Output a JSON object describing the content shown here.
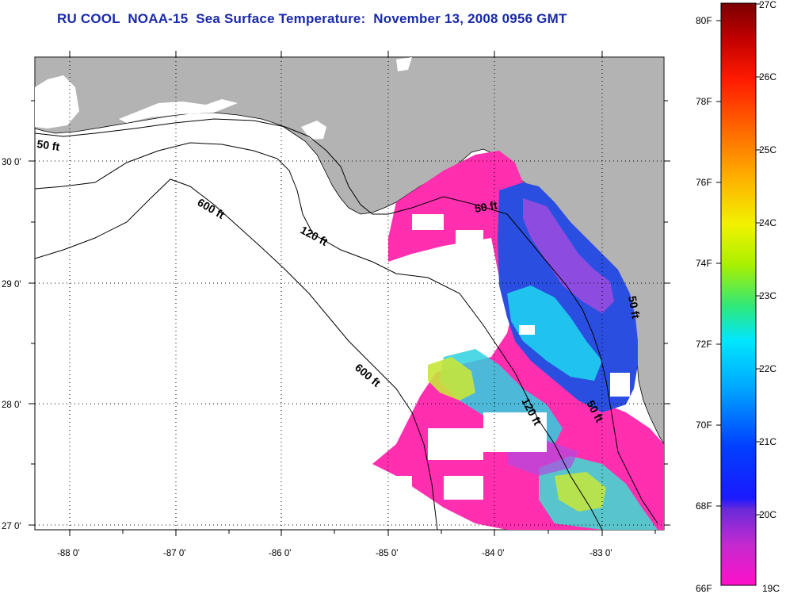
{
  "title": "RU COOL  NOAA-15  Sea Surface Temperature:  November 13, 2008 0956 GMT",
  "map": {
    "lon_ticks": [
      "-88 0'",
      "-87 0'",
      "-86 0'",
      "-85 0'",
      "-84 0'",
      "-83 0'"
    ],
    "lat_ticks": [
      "30 0'",
      "29 0'",
      "28 0'",
      "27 0'"
    ],
    "contours": [
      "50 ft",
      "120 ft",
      "600 ft",
      "600 ft",
      "50 ft",
      "120 ft",
      "50 ft",
      "50 ft"
    ]
  },
  "colorbar": {
    "fahrenheit": [
      "80F",
      "78F",
      "76F",
      "74F",
      "72F",
      "70F",
      "68F",
      "66F"
    ],
    "celsius": [
      "27C",
      "26C",
      "25C",
      "24C",
      "23C",
      "22C",
      "21C",
      "20C",
      "19C"
    ]
  },
  "colors": {
    "land": "#b3b3b3",
    "cold": "#ff2fb0",
    "cool_blue": "#2a4fe0",
    "mid_cyan": "#1fd6f0",
    "warm_yellow": "#c8e63a",
    "title": "#1a2aa8"
  }
}
